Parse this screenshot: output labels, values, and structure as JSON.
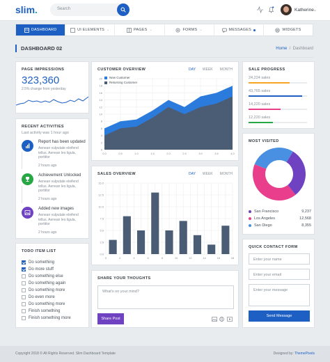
{
  "header": {
    "logo": "slim",
    "logo_dot": ".",
    "search_placeholder": "Search",
    "user_name": "Katherine"
  },
  "nav": [
    {
      "label": "DASHBOARD",
      "icon": "dashboard-icon",
      "active": true
    },
    {
      "label": "UI ELEMENTS",
      "icon": "layers-icon"
    },
    {
      "label": "PAGES",
      "icon": "pages-icon"
    },
    {
      "label": "FORMS",
      "icon": "gear-icon"
    },
    {
      "label": "MESSAGES",
      "icon": "chat-icon"
    },
    {
      "label": "WIDGETS",
      "icon": "widgets-icon"
    }
  ],
  "page": {
    "title": "DASHBOARD 02",
    "breadcrumb_home": "Home",
    "breadcrumb_current": "Dashboard"
  },
  "impressions": {
    "title": "PAGE IMPRESSIONS",
    "value": "323,360",
    "change": "2.5% change from yesterday"
  },
  "activities": {
    "title": "RECENT ACTIVITIES",
    "subtitle": "Last activity was 1 hour ago",
    "items": [
      {
        "title": "Report has been updated",
        "desc": "Aenean vulputate eleifend tellus. Aenean leo ligula, porttitor",
        "time": "2 hours ago",
        "color": "#1e5fc4",
        "icon": "report-icon"
      },
      {
        "title": "Achievement Unlocked",
        "desc": "Aenean vulputate eleifend tellus. Aenean leo ligula, porttitor",
        "time": "2 hours ago",
        "color": "#28a745",
        "icon": "trophy-icon"
      },
      {
        "title": "Added new images",
        "desc": "Aenean vulputate eleifend tellus. Aenean leo ligula, porttitor",
        "time": "2 hours ago",
        "color": "#6f42c1",
        "icon": "image-icon"
      }
    ]
  },
  "todo": {
    "title": "TODO ITEM LIST",
    "items": [
      {
        "label": "Do something",
        "checked": true
      },
      {
        "label": "Do more stuff",
        "checked": true
      },
      {
        "label": "Do something else",
        "checked": false
      },
      {
        "label": "Do something again",
        "checked": false
      },
      {
        "label": "Do something more",
        "checked": false
      },
      {
        "label": "Do even more",
        "checked": false
      },
      {
        "label": "Do something more",
        "checked": false
      },
      {
        "label": "Finish something",
        "checked": false
      },
      {
        "label": "Finish something more",
        "checked": false
      }
    ]
  },
  "customer_overview": {
    "title": "CUSTOMER OVERVIEW",
    "tabs": [
      "DAY",
      "WEEK",
      "MONTH"
    ],
    "legend": [
      "New Customer",
      "Returning Customer"
    ]
  },
  "sales_overview": {
    "title": "SALES OVERVIEW",
    "tabs": [
      "DAY",
      "WEEK",
      "MONTH"
    ]
  },
  "chart_data": [
    {
      "type": "area",
      "x": [
        0,
        1,
        2,
        3,
        4,
        5,
        6,
        7,
        8
      ],
      "x_tick_labels": [
        "0.0",
        "0.5",
        "1.0",
        "1.5",
        "2.0",
        "2.5",
        "3.0",
        "3.5",
        "4.0"
      ],
      "series": [
        {
          "name": "New Customer",
          "values": [
            6,
            8,
            8.5,
            11,
            14,
            12,
            15,
            16,
            18
          ],
          "color": "#2b7bdc"
        },
        {
          "name": "Returning Customer",
          "values": [
            4,
            6,
            6.5,
            9,
            12,
            10,
            12,
            13,
            15
          ],
          "color": "#4b5d74"
        }
      ],
      "ylim": [
        0,
        20
      ],
      "y_ticks": [
        0,
        2,
        4,
        6,
        8,
        10,
        12,
        14,
        16,
        18,
        20
      ],
      "grid": true
    },
    {
      "type": "bar",
      "categories": [
        "0",
        "1",
        "2",
        "3",
        "4",
        "5",
        "6",
        "7",
        "8",
        "9",
        "10",
        "11",
        "12",
        "13",
        "14",
        "15",
        "16",
        "17",
        "18"
      ],
      "values": [
        null,
        3,
        null,
        8,
        null,
        5,
        null,
        13,
        null,
        5,
        null,
        7,
        null,
        4,
        null,
        2,
        null,
        6,
        null
      ],
      "x_tick_labels": [
        "0",
        "2",
        "4",
        "6",
        "8",
        "10",
        "12",
        "14",
        "16",
        "18"
      ],
      "ylim": [
        0,
        15
      ],
      "y_ticks": [
        "0.0",
        "2.5",
        "5.0",
        "7.5",
        "10.0",
        "12.5",
        "15.0"
      ],
      "color": "#4b5d74",
      "grid": true
    },
    {
      "type": "pie",
      "categories": [
        "San Francisco",
        "Los Angeles",
        "San Diego"
      ],
      "values": [
        9237,
        12568,
        8355
      ],
      "colors": [
        "#6f42c1",
        "#e83e8c",
        "#4a90e2"
      ]
    }
  ],
  "sale_progress": {
    "title": "SALE PROGRESS",
    "items": [
      {
        "label": "24,224 sales",
        "percent": 0.7,
        "color": "#f6a623"
      },
      {
        "label": "43,765 sales",
        "percent": 0.92,
        "color": "#1e5fc4"
      },
      {
        "label": "14,220 sales",
        "percent": 0.55,
        "color": "#e83e8c"
      },
      {
        "label": "12,220 sales",
        "percent": 0.42,
        "color": "#28a745"
      }
    ]
  },
  "most_visited": {
    "title": "MOST VISITED",
    "items": [
      {
        "city": "San Francisco",
        "value": "9,237",
        "color": "#6f42c1"
      },
      {
        "city": "Los Angeles",
        "value": "12,568",
        "color": "#e83e8c"
      },
      {
        "city": "San Diego",
        "value": "8,355",
        "color": "#4a90e2"
      }
    ]
  },
  "share": {
    "title": "SHARE YOUR THOUGHTS",
    "placeholder": "What's on your mind?",
    "button": "Share Post"
  },
  "contact": {
    "title": "QUICK CONTACT FORM",
    "name_placeholder": "Enter your name",
    "email_placeholder": "Enter your email",
    "message_placeholder": "Enter your message",
    "button": "Send Message"
  },
  "footer": {
    "copyright": "Copyright 2018 © All Rights Reserved. Slim Dashboard Template",
    "designed_by": "Designed by:",
    "designer": "ThemePixels"
  }
}
